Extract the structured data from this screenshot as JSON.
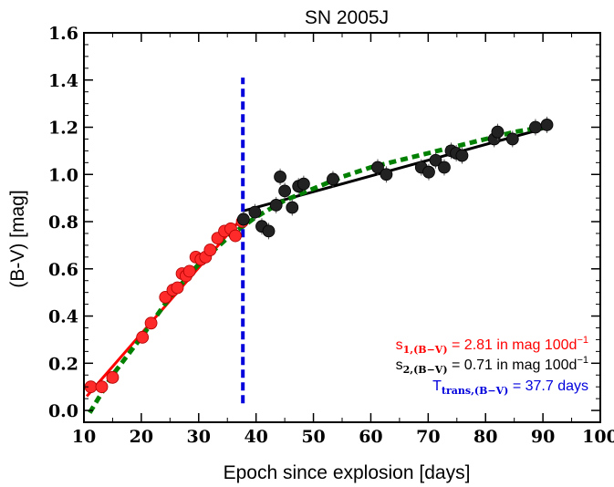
{
  "chart_data": {
    "type": "scatter",
    "title": "SN 2005J",
    "xlabel": "Epoch since explosion [days]",
    "ylabel": "(B-V) [mag]",
    "xlim": [
      10,
      100
    ],
    "ylim": [
      -0.05,
      1.6
    ],
    "xticks": [
      "10",
      "20",
      "30",
      "40",
      "50",
      "60",
      "70",
      "80",
      "90",
      "100"
    ],
    "yticks": [
      "0.0",
      "0.2",
      "0.4",
      "0.6",
      "0.8",
      "1.0",
      "1.2",
      "1.4",
      "1.6"
    ],
    "grid": false,
    "series": [
      {
        "role": "early-epoch points",
        "color": "#ff2a2a",
        "x": [
          11.2,
          13.1,
          15.0,
          20.2,
          21.7,
          24.2,
          25.5,
          26.3,
          27.1,
          27.8,
          28.4,
          29.5,
          30.4,
          31.2,
          32.0,
          33.3,
          34.5,
          35.6,
          36.4,
          37.6
        ],
        "y": [
          0.1,
          0.1,
          0.14,
          0.31,
          0.37,
          0.48,
          0.51,
          0.52,
          0.58,
          0.57,
          0.59,
          0.65,
          0.64,
          0.65,
          0.68,
          0.73,
          0.76,
          0.77,
          0.74,
          0.8
        ]
      },
      {
        "role": "late-epoch points",
        "color": "#222222",
        "x": [
          37.8,
          39.8,
          41.0,
          42.2,
          43.5,
          44.2,
          45.0,
          46.3,
          47.4,
          48.3,
          53.4,
          61.2,
          62.7,
          68.8,
          70.1,
          71.3,
          72.8,
          74.0,
          74.9,
          75.9,
          81.5,
          82.1,
          84.7,
          88.7,
          90.7
        ],
        "y": [
          0.81,
          0.84,
          0.78,
          0.76,
          0.87,
          0.99,
          0.93,
          0.86,
          0.95,
          0.96,
          0.98,
          1.03,
          1.0,
          1.03,
          1.01,
          1.06,
          1.03,
          1.1,
          1.09,
          1.08,
          1.15,
          1.18,
          1.15,
          1.2,
          1.21
        ]
      }
    ],
    "fits": [
      {
        "role": "linear fit, first segment",
        "color": "#ff0000",
        "style": "solid",
        "x": [
          10.5,
          37.7
        ],
        "y": [
          0.06,
          0.82
        ]
      },
      {
        "role": "linear fit, second segment",
        "color": "#000000",
        "style": "solid",
        "x": [
          37.7,
          91.0
        ],
        "y": [
          0.845,
          1.2
        ]
      },
      {
        "role": "smooth fit",
        "color": "#008000",
        "style": "dashed",
        "x": [
          11,
          15,
          20,
          25,
          30,
          35,
          37.7,
          40,
          45,
          50,
          55,
          60,
          65,
          70,
          75,
          80,
          85,
          90
        ],
        "y": [
          -0.01,
          0.15,
          0.31,
          0.48,
          0.62,
          0.73,
          0.78,
          0.82,
          0.89,
          0.94,
          0.99,
          1.03,
          1.06,
          1.09,
          1.12,
          1.15,
          1.18,
          1.2
        ]
      }
    ],
    "transition_line": {
      "x": 37.7,
      "y_range": [
        0.03,
        1.41
      ],
      "color": "#0000dd",
      "style": "dashed"
    },
    "annotations": [
      {
        "base": "s",
        "sub": "1,(B−V)",
        "text": " = 2.81 in mag 100d",
        "sup": "−1",
        "color": "#ff0000"
      },
      {
        "base": "s",
        "sub": "2,(B−V)",
        "text": " = 0.71 in mag 100d",
        "sup": "−1",
        "color": "#000000"
      },
      {
        "base": "T",
        "sub": "trans,(B−V)",
        "text": " = 37.7 days",
        "sup": "",
        "color": "#0000dd"
      }
    ]
  }
}
